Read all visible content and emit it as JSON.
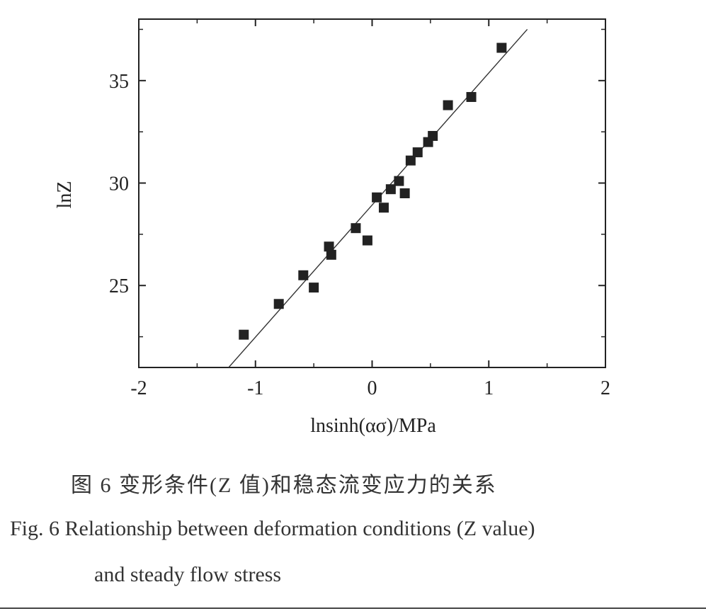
{
  "chart_data": {
    "type": "scatter",
    "xlabel": "lnsinh(ασ)/MPa",
    "ylabel": "lnZ",
    "xlim": [
      -2,
      2
    ],
    "ylim": [
      21,
      38
    ],
    "x_ticks": [
      -2,
      -1,
      0,
      1,
      2
    ],
    "y_ticks": [
      25,
      30,
      35
    ],
    "x_tick_labels": [
      "-2",
      "-1",
      "0",
      "1",
      "2"
    ],
    "y_tick_labels": [
      "25",
      "30",
      "35"
    ],
    "grid": false,
    "marker": "square",
    "colors": {
      "marker": "#222222",
      "line": "#333333",
      "axis": "#222222"
    },
    "points": [
      {
        "x": -1.1,
        "y": 22.6
      },
      {
        "x": -0.8,
        "y": 24.1
      },
      {
        "x": -0.59,
        "y": 25.5
      },
      {
        "x": -0.5,
        "y": 24.9
      },
      {
        "x": -0.37,
        "y": 26.9
      },
      {
        "x": -0.35,
        "y": 26.5
      },
      {
        "x": -0.14,
        "y": 27.8
      },
      {
        "x": -0.04,
        "y": 27.2
      },
      {
        "x": 0.04,
        "y": 29.3
      },
      {
        "x": 0.1,
        "y": 28.8
      },
      {
        "x": 0.16,
        "y": 29.7
      },
      {
        "x": 0.23,
        "y": 30.1
      },
      {
        "x": 0.28,
        "y": 29.5
      },
      {
        "x": 0.33,
        "y": 31.1
      },
      {
        "x": 0.39,
        "y": 31.5
      },
      {
        "x": 0.48,
        "y": 32.0
      },
      {
        "x": 0.52,
        "y": 32.3
      },
      {
        "x": 0.65,
        "y": 33.8
      },
      {
        "x": 0.85,
        "y": 34.2
      },
      {
        "x": 1.11,
        "y": 36.6
      }
    ],
    "fit_line": {
      "x": [
        -1.23,
        1.33
      ],
      "y": [
        21.0,
        37.5
      ]
    }
  },
  "caption": {
    "chinese": "图 6 变形条件(Z 值)和稳态流变应力的关系",
    "english_line1": "Fig. 6 Relationship between deformation conditions (Z value)",
    "english_line2": "and steady flow stress"
  }
}
